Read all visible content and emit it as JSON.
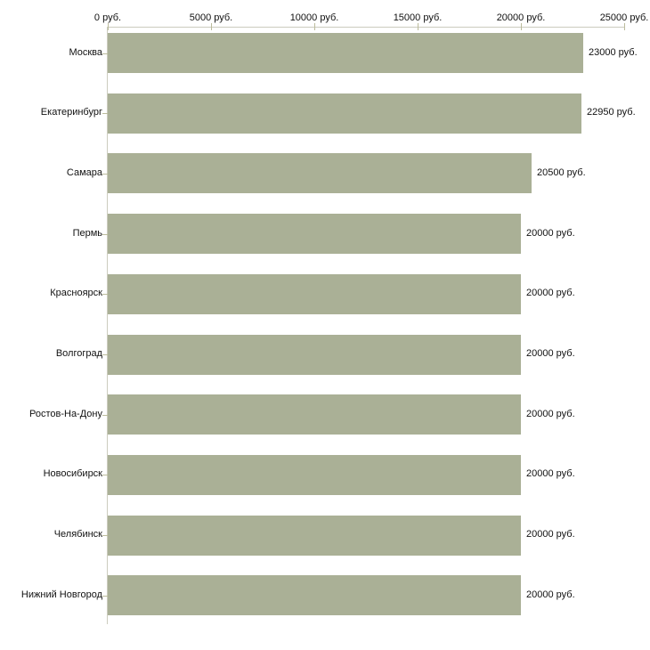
{
  "chart_data": {
    "type": "bar",
    "orientation": "horizontal",
    "categories": [
      "Москва",
      "Екатеринбург",
      "Самара",
      "Пермь",
      "Красноярск",
      "Волгоград",
      "Ростов-На-Дону",
      "Новосибирск",
      "Челябинск",
      "Нижний Новгород"
    ],
    "values": [
      23000,
      22950,
      20500,
      20000,
      20000,
      20000,
      20000,
      20000,
      20000,
      20000
    ],
    "value_labels": [
      "23000 руб.",
      "22950 руб.",
      "20500 руб.",
      "20000 руб.",
      "20000 руб.",
      "20000 руб.",
      "20000 руб.",
      "20000 руб.",
      "20000 руб.",
      "20000 руб."
    ],
    "x_ticks": [
      0,
      5000,
      10000,
      15000,
      20000,
      25000
    ],
    "x_tick_labels": [
      "0 руб.",
      "5000 руб.",
      "10000 руб.",
      "15000 руб.",
      "20000 руб.",
      "25000 руб."
    ],
    "xlim": [
      0,
      25000
    ],
    "x_axis_position": "top",
    "grid": false,
    "legend": false,
    "title": "",
    "xlabel": "",
    "ylabel": "",
    "colors": {
      "bar": "#aab096",
      "axis_line": "#ccccbe",
      "tick": "#bcbc9c",
      "text": "#111111",
      "background": "#ffffff"
    }
  }
}
